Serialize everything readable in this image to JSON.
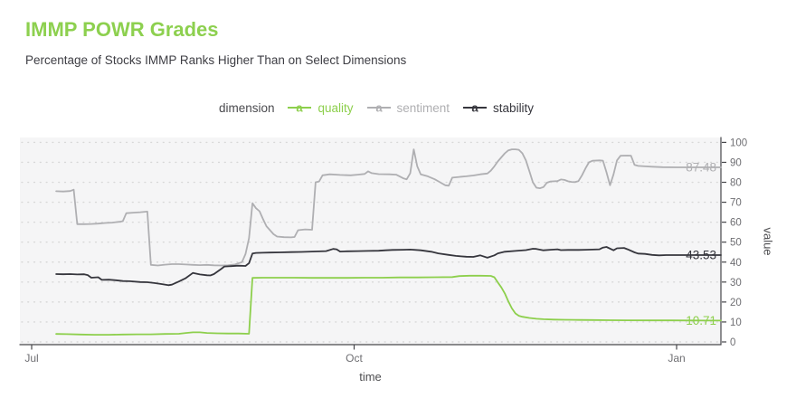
{
  "header": {
    "title": "IMMP POWR Grades",
    "subtitle": "Percentage of Stocks IMMP Ranks Higher Than on Select Dimensions"
  },
  "legend": {
    "title": "dimension",
    "key_glyph": "a",
    "items": [
      {
        "label": "quality",
        "color": "#8dcf4c"
      },
      {
        "label": "sentiment",
        "color": "#afafb2"
      },
      {
        "label": "stability",
        "color": "#36363d"
      }
    ]
  },
  "style": {
    "title_color": "#8dd04f",
    "panel_bg": "#f5f5f6",
    "grid": "#d8d8d8",
    "axis": "#47474b",
    "tick_label": "#6f6f73",
    "axis_title": "#4d4d50"
  },
  "chart_data": {
    "type": "line",
    "title": "IMMP POWR Grades",
    "subtitle": "Percentage of Stocks IMMP Ranks Higher Than on Select Dimensions",
    "xlabel": "time",
    "ylabel": "value",
    "grid": "dotted-horizontal",
    "legend_position": "top-center",
    "x_axis": {
      "unit": "days since Jul 1",
      "tick_days": [
        0,
        92,
        184
      ],
      "tick_labels": [
        "Jul",
        "Oct",
        "Jan"
      ],
      "range_days": [
        3,
        197
      ]
    },
    "y_axis": {
      "side": "right",
      "range": [
        0,
        100
      ],
      "ticks": [
        0,
        10,
        20,
        30,
        40,
        50,
        60,
        70,
        80,
        90,
        100
      ],
      "tick_labels": [
        "0",
        "10",
        "20",
        "30",
        "40",
        "50",
        "60",
        "70",
        "80",
        "90",
        "100"
      ]
    },
    "series": [
      {
        "name": "quality",
        "color": "#8dcf4c",
        "end_label": "10.71",
        "points": [
          [
            7,
            4
          ],
          [
            10,
            3.9
          ],
          [
            14,
            3.7
          ],
          [
            18,
            3.6
          ],
          [
            22,
            3.6
          ],
          [
            26,
            3.7
          ],
          [
            30,
            3.8
          ],
          [
            34,
            3.8
          ],
          [
            38,
            4
          ],
          [
            42,
            4.1
          ],
          [
            44,
            4.5
          ],
          [
            46,
            4.8
          ],
          [
            48,
            4.8
          ],
          [
            50,
            4.5
          ],
          [
            53,
            4.3
          ],
          [
            56,
            4.2
          ],
          [
            59,
            4.2
          ],
          [
            62,
            4.1
          ],
          [
            63,
            32.1
          ],
          [
            66,
            32.2
          ],
          [
            70,
            32.2
          ],
          [
            75,
            32.2
          ],
          [
            80,
            32.1
          ],
          [
            85,
            32.1
          ],
          [
            90,
            32.1
          ],
          [
            95,
            32.2
          ],
          [
            100,
            32.2
          ],
          [
            105,
            32.3
          ],
          [
            110,
            32.3
          ],
          [
            115,
            32.4
          ],
          [
            120,
            32.5
          ],
          [
            122,
            33
          ],
          [
            125,
            33.2
          ],
          [
            128,
            33.2
          ],
          [
            131,
            33.1
          ],
          [
            132,
            32.4
          ],
          [
            133,
            29.8
          ],
          [
            134,
            27.3
          ],
          [
            135,
            24.3
          ],
          [
            136,
            20.3
          ],
          [
            137,
            16.8
          ],
          [
            138,
            14.3
          ],
          [
            139,
            13.1
          ],
          [
            140,
            12.6
          ],
          [
            142,
            12
          ],
          [
            144,
            11.6
          ],
          [
            146,
            11.4
          ],
          [
            149,
            11.2
          ],
          [
            152,
            11.1
          ],
          [
            156,
            11
          ],
          [
            160,
            10.95
          ],
          [
            165,
            10.9
          ],
          [
            170,
            10.85
          ],
          [
            176,
            10.8
          ],
          [
            182,
            10.78
          ],
          [
            188,
            10.74
          ],
          [
            193,
            10.72
          ],
          [
            197,
            10.71
          ]
        ]
      },
      {
        "name": "sentiment",
        "color": "#afafb2",
        "end_label": "87.48",
        "points": [
          [
            7,
            75.5
          ],
          [
            9,
            75.4
          ],
          [
            11,
            75.6
          ],
          [
            12,
            76.3
          ],
          [
            13,
            59
          ],
          [
            15,
            59
          ],
          [
            17,
            59.1
          ],
          [
            19,
            59.3
          ],
          [
            21,
            59.6
          ],
          [
            23,
            59.8
          ],
          [
            25,
            60.2
          ],
          [
            26,
            60.5
          ],
          [
            27,
            64.5
          ],
          [
            29,
            64.8
          ],
          [
            31,
            65
          ],
          [
            33,
            65.3
          ],
          [
            34,
            38.6
          ],
          [
            36,
            38.3
          ],
          [
            38,
            38.7
          ],
          [
            40,
            39
          ],
          [
            42,
            39
          ],
          [
            44,
            38.8
          ],
          [
            46,
            38.6
          ],
          [
            48,
            38.5
          ],
          [
            50,
            38.6
          ],
          [
            52,
            38.4
          ],
          [
            54,
            38.3
          ],
          [
            56,
            38.4
          ],
          [
            58,
            38.8
          ],
          [
            60,
            40
          ],
          [
            61,
            44
          ],
          [
            62,
            52
          ],
          [
            63,
            69.5
          ],
          [
            64,
            67
          ],
          [
            65,
            65.5
          ],
          [
            66,
            61.5
          ],
          [
            67,
            58
          ],
          [
            68,
            56
          ],
          [
            69,
            54
          ],
          [
            70,
            52.8
          ],
          [
            72,
            52.5
          ],
          [
            74,
            52.4
          ],
          [
            75,
            52.6
          ],
          [
            76,
            56
          ],
          [
            78,
            56.4
          ],
          [
            80,
            56.2
          ],
          [
            81,
            80
          ],
          [
            82,
            80.4
          ],
          [
            83,
            83.5
          ],
          [
            85,
            84
          ],
          [
            88,
            83.7
          ],
          [
            91,
            83.5
          ],
          [
            93,
            83.8
          ],
          [
            95,
            84.2
          ],
          [
            96,
            85.5
          ],
          [
            97,
            84.6
          ],
          [
            99,
            84.1
          ],
          [
            102,
            84
          ],
          [
            104,
            83.8
          ],
          [
            106,
            82
          ],
          [
            107,
            81.5
          ],
          [
            108,
            84.5
          ],
          [
            109,
            96.5
          ],
          [
            110,
            88
          ],
          [
            111,
            84
          ],
          [
            113,
            83
          ],
          [
            115,
            81.5
          ],
          [
            116,
            80.5
          ],
          [
            117,
            79.5
          ],
          [
            118,
            78.5
          ],
          [
            119,
            78.3
          ],
          [
            120,
            82.3
          ],
          [
            122,
            82.7
          ],
          [
            124,
            83
          ],
          [
            126,
            83.4
          ],
          [
            128,
            84
          ],
          [
            130,
            84.4
          ],
          [
            131,
            85.8
          ],
          [
            132,
            88
          ],
          [
            133,
            90.5
          ],
          [
            134,
            92.5
          ],
          [
            135,
            94.5
          ],
          [
            136,
            96
          ],
          [
            137,
            96.5
          ],
          [
            138,
            96.5
          ],
          [
            139,
            96.3
          ],
          [
            140,
            94.5
          ],
          [
            141,
            91
          ],
          [
            142,
            85.5
          ],
          [
            143,
            80
          ],
          [
            144,
            77.3
          ],
          [
            145,
            77
          ],
          [
            146,
            77.6
          ],
          [
            147,
            79.8
          ],
          [
            148,
            80.4
          ],
          [
            150,
            80.6
          ],
          [
            151,
            81.4
          ],
          [
            152,
            81.2
          ],
          [
            153,
            80.5
          ],
          [
            154,
            80.2
          ],
          [
            155,
            80.1
          ],
          [
            156,
            80.6
          ],
          [
            157,
            83.5
          ],
          [
            158,
            87
          ],
          [
            159,
            90
          ],
          [
            160,
            90.8
          ],
          [
            162,
            91
          ],
          [
            163,
            90.8
          ],
          [
            164,
            85
          ],
          [
            165,
            78.5
          ],
          [
            166,
            84
          ],
          [
            167,
            91
          ],
          [
            168,
            93.3
          ],
          [
            170,
            93.4
          ],
          [
            171,
            93.3
          ],
          [
            172,
            88.7
          ],
          [
            173,
            88.2
          ],
          [
            175,
            88
          ],
          [
            177,
            87.8
          ],
          [
            180,
            87.6
          ],
          [
            184,
            87.5
          ],
          [
            188,
            87.5
          ],
          [
            192,
            87.5
          ],
          [
            197,
            87.48
          ]
        ]
      },
      {
        "name": "stability",
        "color": "#36363d",
        "end_label": "43.53",
        "points": [
          [
            7,
            34
          ],
          [
            9,
            33.9
          ],
          [
            11,
            34
          ],
          [
            13,
            33.8
          ],
          [
            15,
            33.9
          ],
          [
            16,
            33.5
          ],
          [
            17,
            32.2
          ],
          [
            19,
            32.4
          ],
          [
            20,
            31.1
          ],
          [
            22,
            31.2
          ],
          [
            24,
            30.9
          ],
          [
            26,
            30.5
          ],
          [
            28,
            30.4
          ],
          [
            31,
            30
          ],
          [
            33,
            29.9
          ],
          [
            35,
            29.5
          ],
          [
            37,
            29
          ],
          [
            39,
            28.4
          ],
          [
            40,
            28.7
          ],
          [
            42,
            30.3
          ],
          [
            44,
            32
          ],
          [
            46,
            34.6
          ],
          [
            48,
            33.8
          ],
          [
            50,
            33.4
          ],
          [
            51,
            33.3
          ],
          [
            52,
            34
          ],
          [
            54,
            36.5
          ],
          [
            55,
            37.8
          ],
          [
            57,
            38
          ],
          [
            59,
            38.2
          ],
          [
            61,
            38.1
          ],
          [
            62,
            39.5
          ],
          [
            63,
            44.3
          ],
          [
            64,
            44.6
          ],
          [
            66,
            44.7
          ],
          [
            68,
            44.8
          ],
          [
            71,
            44.9
          ],
          [
            74,
            45
          ],
          [
            77,
            45.1
          ],
          [
            80,
            45.3
          ],
          [
            84,
            45.5
          ],
          [
            86,
            46.6
          ],
          [
            87,
            46.4
          ],
          [
            88,
            45.3
          ],
          [
            90,
            45.4
          ],
          [
            93,
            45.5
          ],
          [
            96,
            45.6
          ],
          [
            99,
            45.7
          ],
          [
            101,
            45.9
          ],
          [
            103,
            46.1
          ],
          [
            106,
            46.2
          ],
          [
            108,
            46.3
          ],
          [
            111,
            45.9
          ],
          [
            114,
            45.2
          ],
          [
            116,
            44.4
          ],
          [
            119,
            43.6
          ],
          [
            121,
            43.1
          ],
          [
            124,
            42.7
          ],
          [
            126,
            42.6
          ],
          [
            128,
            43.4
          ],
          [
            130,
            42.2
          ],
          [
            132,
            43.4
          ],
          [
            133,
            44.4
          ],
          [
            135,
            45.2
          ],
          [
            138,
            45.6
          ],
          [
            141,
            46
          ],
          [
            143,
            46.7
          ],
          [
            144,
            46.6
          ],
          [
            146,
            45.9
          ],
          [
            148,
            46.2
          ],
          [
            150,
            46.4
          ],
          [
            151,
            46
          ],
          [
            153,
            46.1
          ],
          [
            156,
            46.1
          ],
          [
            158,
            46.2
          ],
          [
            160,
            46.3
          ],
          [
            162,
            46.4
          ],
          [
            163,
            47.3
          ],
          [
            164,
            47.6
          ],
          [
            166,
            45.9
          ],
          [
            167,
            46.9
          ],
          [
            169,
            47.1
          ],
          [
            170,
            46.4
          ],
          [
            172,
            44.9
          ],
          [
            173,
            44.3
          ],
          [
            175,
            44.1
          ],
          [
            177,
            43.6
          ],
          [
            179,
            43.4
          ],
          [
            181,
            43.5
          ],
          [
            185,
            43.5
          ],
          [
            190,
            43.5
          ],
          [
            197,
            43.53
          ]
        ]
      }
    ]
  }
}
